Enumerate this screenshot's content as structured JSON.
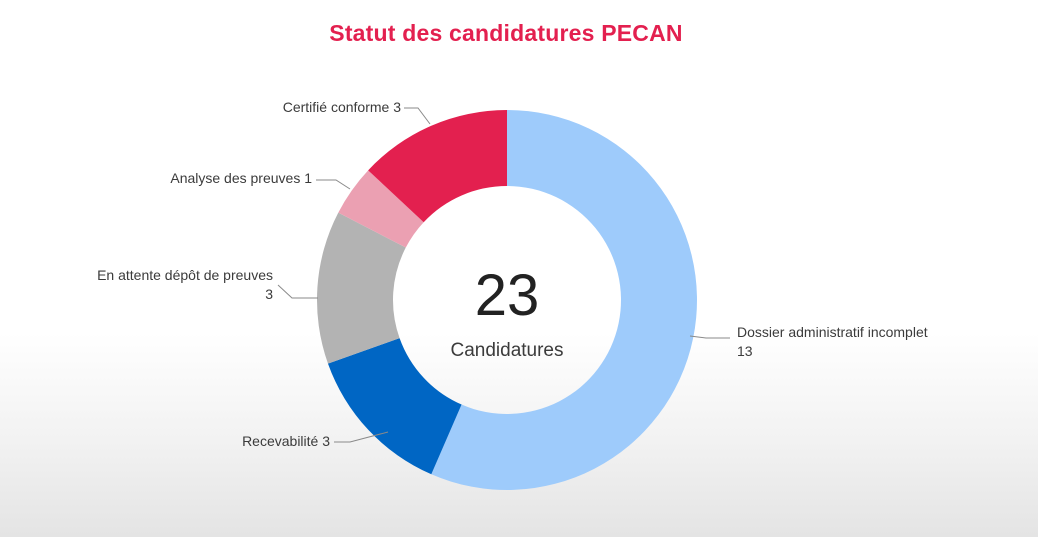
{
  "chart_data": {
    "type": "pie",
    "variant": "donut",
    "title": "Statut des candidatures PECAN",
    "center": {
      "value": "23",
      "label": "Candidatures"
    },
    "total": 23,
    "slices": [
      {
        "label": "Dossier administratif incomplet",
        "value": 13,
        "color": "#9ecbfb"
      },
      {
        "label": "Recevabilité",
        "value": 3,
        "color": "#0066c4"
      },
      {
        "label": "En attente dépôt de preuves",
        "value": 3,
        "color": "#b3b3b3"
      },
      {
        "label": "Analyse des preuves",
        "value": 1,
        "color": "#eba0b2"
      },
      {
        "label": "Certifié conforme",
        "value": 3,
        "color": "#e3204f"
      }
    ]
  }
}
